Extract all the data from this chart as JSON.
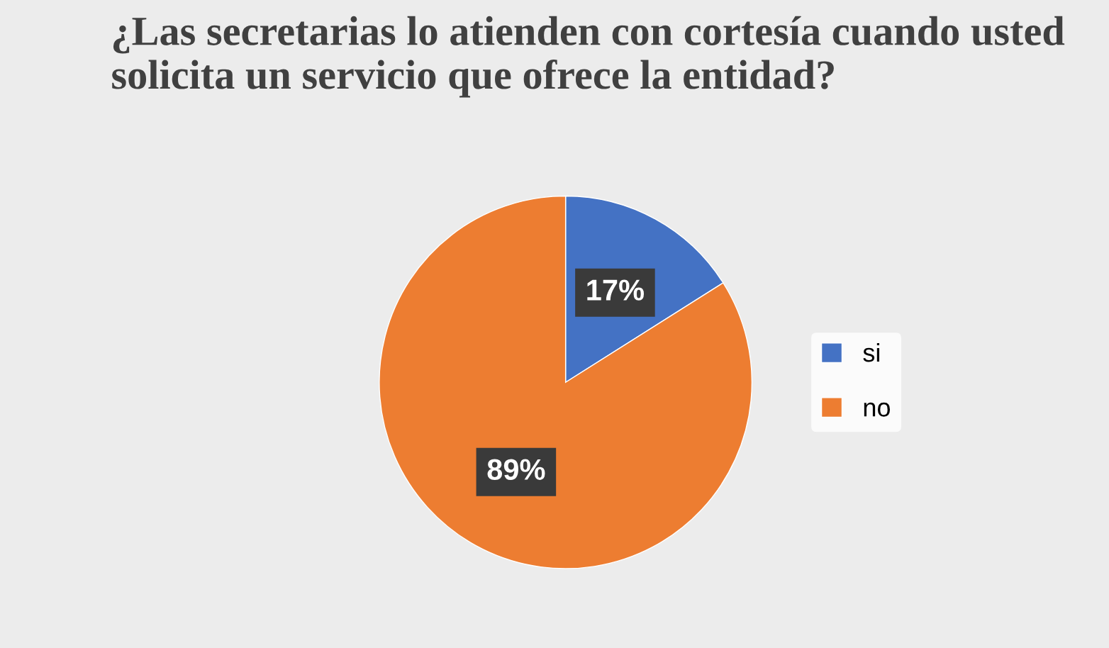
{
  "chart_data": {
    "type": "pie",
    "title": "¿Las secretarias lo atienden con cortesía cuando usted solicita un servicio que ofrece la entidad?",
    "categories": [
      "si",
      "no"
    ],
    "values": [
      17,
      89
    ],
    "colors": [
      "#4472c4",
      "#ed7d31"
    ],
    "value_labels": [
      "17%",
      "89%"
    ],
    "legend": "right"
  }
}
